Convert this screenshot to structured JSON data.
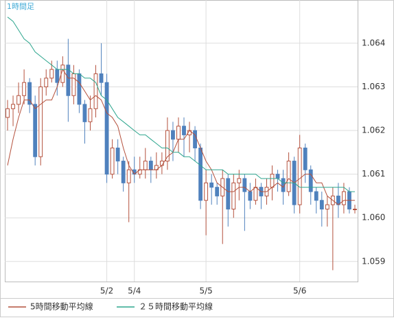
{
  "chart_data": {
    "type": "candlestick",
    "title": "1時間足",
    "categories": [
      null,
      null,
      null,
      null,
      null,
      null,
      null,
      null,
      null,
      null,
      null,
      null,
      null,
      null,
      null,
      null,
      null,
      null,
      "5/2",
      null,
      null,
      null,
      null,
      "5/4",
      null,
      null,
      null,
      null,
      null,
      null,
      null,
      null,
      null,
      null,
      null,
      null,
      "5/5",
      null,
      null,
      null,
      null,
      null,
      null,
      null,
      null,
      null,
      null,
      null,
      null,
      null,
      null,
      null,
      null,
      "5/6",
      null,
      null,
      null,
      null,
      null,
      null,
      null,
      null,
      null,
      null
    ],
    "open": [
      1.0623,
      1.0625,
      1.0626,
      1.0628,
      1.0631,
      1.0626,
      1.0614,
      1.063,
      1.0632,
      1.0634,
      1.0631,
      1.0635,
      1.0628,
      1.0633,
      1.0626,
      1.0622,
      1.0625,
      1.0633,
      1.0631,
      1.061,
      1.0616,
      1.0613,
      1.0608,
      1.0611,
      1.061,
      1.0611,
      1.0613,
      1.0611,
      1.0612,
      1.0613,
      1.062,
      1.0618,
      1.0621,
      1.0619,
      1.062,
      1.0616,
      1.0604,
      1.0608,
      1.0607,
      1.0605,
      1.0609,
      1.0602,
      1.0608,
      1.0609,
      1.0606,
      1.0604,
      1.0607,
      1.0605,
      1.0607,
      1.061,
      1.0609,
      1.0606,
      1.0613,
      1.0603,
      1.0616,
      1.0611,
      1.0606,
      1.0604,
      1.0602,
      1.0603,
      1.0605,
      1.0603,
      1.0606,
      1.0602
    ],
    "high": [
      1.0627,
      1.0628,
      1.0631,
      1.0634,
      1.0632,
      1.0628,
      1.0632,
      1.0634,
      1.0636,
      1.0636,
      1.0637,
      1.0641,
      1.0635,
      1.0634,
      1.0627,
      1.0628,
      1.0635,
      1.064,
      1.0633,
      1.0618,
      1.0618,
      1.0614,
      1.0613,
      1.0614,
      1.0614,
      1.0616,
      1.0614,
      1.0615,
      1.0615,
      1.0623,
      1.0622,
      1.0623,
      1.0623,
      1.0622,
      1.0621,
      1.0617,
      1.0611,
      1.061,
      1.0608,
      1.0611,
      1.061,
      1.061,
      1.0611,
      1.061,
      1.0608,
      1.0609,
      1.0608,
      1.0609,
      1.0612,
      1.0611,
      1.0611,
      1.0615,
      1.0614,
      1.0619,
      1.0617,
      1.0612,
      1.0607,
      1.0606,
      1.0605,
      1.0607,
      1.0608,
      1.0608,
      1.0607,
      1.0603
    ],
    "low": [
      1.062,
      1.0621,
      1.0624,
      1.0626,
      1.0624,
      1.0612,
      1.0612,
      1.0628,
      1.0631,
      1.0628,
      1.063,
      1.0622,
      1.0626,
      1.0624,
      1.0617,
      1.062,
      1.0623,
      1.0628,
      1.0608,
      1.0609,
      1.061,
      1.0606,
      1.0599,
      1.0608,
      1.0609,
      1.0609,
      1.0608,
      1.0609,
      1.061,
      1.0611,
      1.0613,
      1.0615,
      1.0614,
      1.0615,
      1.0613,
      1.0602,
      1.0596,
      1.0603,
      1.0603,
      1.0594,
      1.0598,
      1.06,
      1.0604,
      1.0597,
      1.0602,
      1.0603,
      1.0602,
      1.0603,
      1.0604,
      1.0606,
      1.0603,
      1.0605,
      1.0601,
      1.0601,
      1.0608,
      1.0603,
      1.0601,
      1.0598,
      1.0598,
      1.0588,
      1.06,
      1.0601,
      1.0601,
      1.0601
    ],
    "close": [
      1.0625,
      1.0626,
      1.0628,
      1.0631,
      1.0626,
      1.0614,
      1.063,
      1.0632,
      1.0634,
      1.0631,
      1.0635,
      1.0628,
      1.0633,
      1.0626,
      1.0622,
      1.0625,
      1.0633,
      1.0631,
      1.061,
      1.0616,
      1.0613,
      1.0608,
      1.0611,
      1.061,
      1.0611,
      1.0613,
      1.0611,
      1.0612,
      1.0613,
      1.062,
      1.0618,
      1.0621,
      1.0619,
      1.062,
      1.0616,
      1.0604,
      1.0608,
      1.0607,
      1.0605,
      1.0609,
      1.0602,
      1.0608,
      1.0609,
      1.0606,
      1.0604,
      1.0607,
      1.0605,
      1.0607,
      1.061,
      1.0609,
      1.0606,
      1.0613,
      1.0603,
      1.0616,
      1.0611,
      1.0606,
      1.0604,
      1.0602,
      1.0603,
      1.0605,
      1.0603,
      1.0606,
      1.0602,
      1.0602
    ],
    "up_color": "#b4503c",
    "down_color": "#4f81bd",
    "series": [
      {
        "name": "5時間移動平均線",
        "color": "#b4503c",
        "values": [
          1.0612,
          1.0618,
          1.0623,
          1.0627,
          1.0627,
          1.0625,
          1.0626,
          1.0627,
          1.0627,
          1.063,
          1.0634,
          1.0632,
          1.0632,
          1.0631,
          1.0629,
          1.0627,
          1.0628,
          1.0627,
          1.0624,
          1.0623,
          1.0621,
          1.0616,
          1.0612,
          1.061,
          1.0611,
          1.0611,
          1.0611,
          1.0611,
          1.0612,
          1.0614,
          1.0615,
          1.0618,
          1.0618,
          1.062,
          1.0619,
          1.0616,
          1.0613,
          1.0611,
          1.0608,
          1.0607,
          1.0606,
          1.0606,
          1.0607,
          1.0607,
          1.0606,
          1.0607,
          1.0606,
          1.0606,
          1.0607,
          1.0608,
          1.0607,
          1.0609,
          1.0608,
          1.0609,
          1.061,
          1.061,
          1.0608,
          1.0608,
          1.0605,
          1.0604,
          1.0603,
          1.0604,
          1.0604,
          1.0604
        ]
      },
      {
        "name": "２５時間移動平均線",
        "color": "#2ca58d",
        "values": [
          1.0646,
          1.0645,
          1.0643,
          1.0641,
          1.064,
          1.0638,
          1.0637,
          1.0636,
          1.0635,
          1.0634,
          1.0634,
          1.0634,
          1.0633,
          1.0633,
          1.0632,
          1.0632,
          1.0631,
          1.0628,
          1.0627,
          1.0625,
          1.0623,
          1.0622,
          1.0621,
          1.062,
          1.0619,
          1.0619,
          1.0618,
          1.0617,
          1.0616,
          1.0616,
          1.0615,
          1.0615,
          1.0614,
          1.0614,
          1.0613,
          1.0612,
          1.0611,
          1.0611,
          1.0611,
          1.0611,
          1.061,
          1.061,
          1.061,
          1.061,
          1.061,
          1.061,
          1.0609,
          1.0609,
          1.0609,
          1.0609,
          1.0608,
          1.0608,
          1.0608,
          1.0607,
          1.0607,
          1.0607,
          1.0607,
          1.0607,
          1.0607,
          1.0607,
          1.0607,
          1.0607,
          1.0606,
          1.0606
        ]
      }
    ],
    "ylim": [
      1.05854,
      1.06499
    ],
    "yticks": [
      1.059,
      {
        "value": 1.06,
        "label": "1.060"
      },
      1.061,
      1.062,
      1.063,
      1.064
    ],
    "grid": true
  }
}
